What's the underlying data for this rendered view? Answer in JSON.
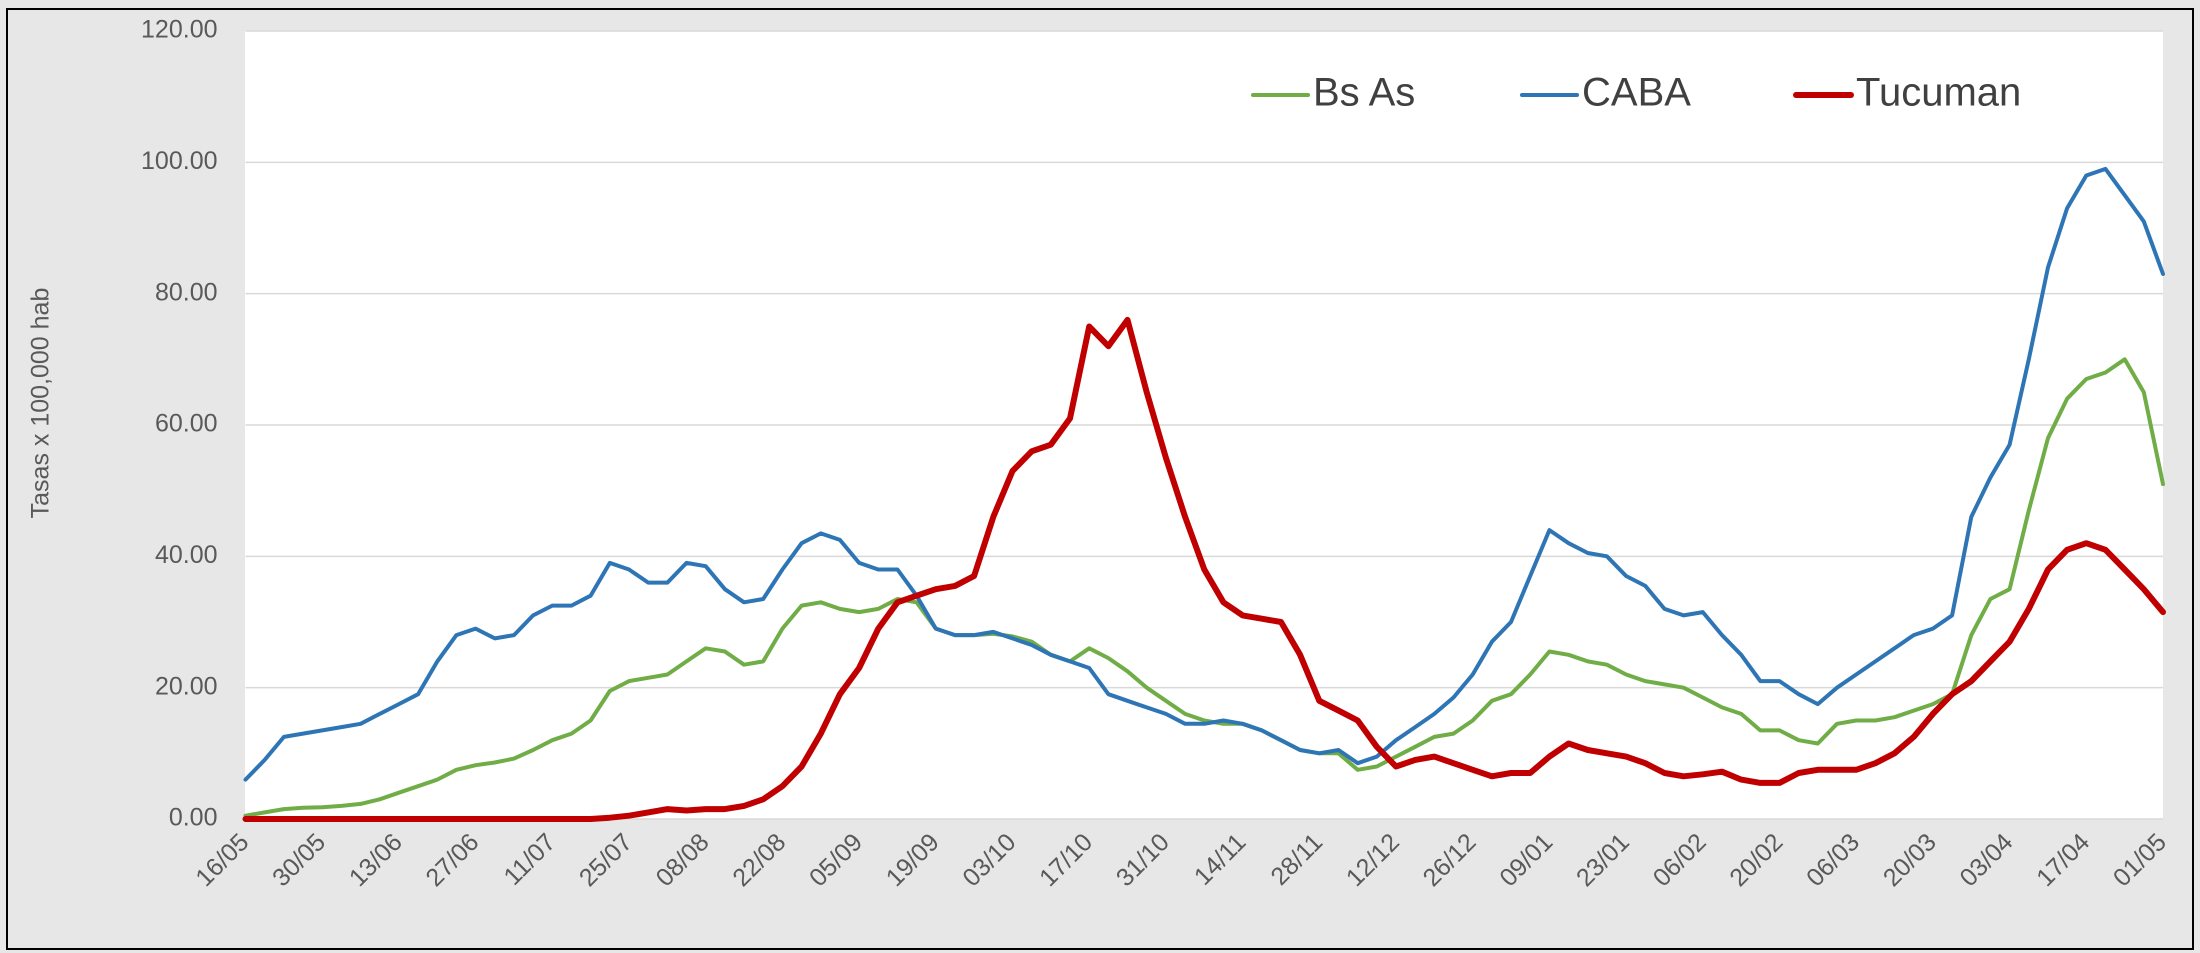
{
  "chart_data": {
    "type": "line",
    "y_label": "Tasas x 100,000 hab",
    "categories": [
      "16/05",
      null,
      null,
      null,
      "30/05",
      null,
      null,
      null,
      "13/06",
      null,
      null,
      null,
      "27/06",
      null,
      null,
      null,
      "11/07",
      null,
      null,
      null,
      "25/07",
      null,
      null,
      null,
      "08/08",
      null,
      null,
      null,
      "22/08",
      null,
      null,
      null,
      "05/09",
      null,
      null,
      null,
      "19/09",
      null,
      null,
      null,
      "03/10",
      null,
      null,
      null,
      "17/10",
      null,
      null,
      null,
      "31/10",
      null,
      null,
      null,
      "14/11",
      null,
      null,
      null,
      "28/11",
      null,
      null,
      null,
      "12/12",
      null,
      null,
      null,
      "26/12",
      null,
      null,
      null,
      "09/01",
      null,
      null,
      null,
      "23/01",
      null,
      null,
      null,
      "06/02",
      null,
      null,
      null,
      "20/02",
      null,
      null,
      null,
      "06/03",
      null,
      null,
      null,
      "20/03",
      null,
      null,
      null,
      "03/04",
      null,
      null,
      null,
      "17/04",
      null,
      null,
      null,
      "01/05"
    ],
    "series": [
      {
        "name": "Bs As",
        "color": "#70ad47",
        "width": 4,
        "values": [
          0.5,
          1,
          1.5,
          1.7,
          1.8,
          2,
          2.3,
          3,
          4,
          5,
          6,
          7.5,
          8.2,
          8.6,
          9.2,
          10.5,
          12,
          13,
          15,
          19.5,
          21,
          21.5,
          22,
          24,
          26,
          25.5,
          23.5,
          24,
          29,
          32.5,
          33,
          32,
          31.5,
          32,
          33.5,
          33,
          29,
          28,
          28,
          28.2,
          27.8,
          27,
          25,
          24,
          26,
          24.5,
          22.5,
          20,
          18,
          16,
          15,
          14.5,
          14.5,
          13.5,
          12,
          10.5,
          10,
          10,
          7.5,
          8,
          9.5,
          11,
          12.5,
          13,
          15,
          18,
          19,
          22,
          25.5,
          25,
          24,
          23.5,
          22,
          21,
          20.5,
          20,
          18.5,
          17,
          16,
          13.5,
          13.5,
          12,
          11.5,
          14.5,
          15,
          15,
          15.5,
          16.5,
          17.5,
          19,
          28,
          33.5,
          35,
          47,
          58,
          64,
          67,
          68,
          70,
          65,
          51
        ]
      },
      {
        "name": "CABA",
        "color": "#2e75b6",
        "width": 4,
        "values": [
          6,
          9,
          12.5,
          13,
          13.5,
          14,
          14.5,
          16,
          17.5,
          19,
          24,
          28,
          29,
          27.5,
          28,
          31,
          32.5,
          32.5,
          34,
          39,
          38,
          36,
          36,
          39,
          38.5,
          35,
          33,
          33.5,
          38,
          42,
          43.5,
          42.5,
          39,
          38,
          38,
          34,
          29,
          28,
          28,
          28.5,
          27.5,
          26.5,
          25,
          24,
          23,
          19,
          18,
          17,
          16,
          14.5,
          14.5,
          15,
          14.5,
          13.5,
          12,
          10.5,
          10,
          10.5,
          8.5,
          9.5,
          12,
          14,
          16,
          18.5,
          22,
          27,
          30,
          37,
          44,
          42,
          40.5,
          40,
          37,
          35.5,
          32,
          31,
          31.5,
          28,
          25,
          21,
          21,
          19,
          17.5,
          20,
          22,
          24,
          26,
          28,
          29,
          31,
          46,
          52,
          57,
          70,
          84,
          93,
          98,
          99,
          95,
          91,
          83
        ]
      },
      {
        "name": "Tucuman",
        "color": "#c00000",
        "width": 6,
        "values": [
          0,
          0,
          0,
          0,
          0,
          0,
          0,
          0,
          0,
          0,
          0,
          0,
          0,
          0,
          0,
          0,
          0,
          0,
          0,
          0.2,
          0.5,
          1,
          1.5,
          1.3,
          1.5,
          1.5,
          2,
          3,
          5,
          8,
          13,
          19,
          23,
          29,
          33,
          34,
          35,
          35.5,
          37,
          46,
          53,
          56,
          57,
          61,
          75,
          72,
          76,
          65,
          55,
          46,
          38,
          33,
          31,
          30.5,
          30,
          25,
          18,
          16.5,
          15,
          11,
          8,
          9,
          9.5,
          8.5,
          7.5,
          6.5,
          7,
          7,
          9.5,
          11.5,
          10.5,
          10,
          9.5,
          8.5,
          7,
          6.5,
          6.8,
          7.2,
          6,
          5.5,
          5.5,
          7,
          7.5,
          7.5,
          7.5,
          8.5,
          10,
          12.5,
          16,
          19,
          21,
          24,
          27,
          32,
          38,
          41,
          42,
          41,
          38,
          35,
          31.5
        ]
      }
    ],
    "ylim": [
      0,
      120
    ],
    "yticks": [
      {
        "value": 0,
        "label": "0.00"
      },
      {
        "value": 20,
        "label": "20.00"
      },
      {
        "value": 40,
        "label": "40.00"
      },
      {
        "value": 60,
        "label": "60.00"
      },
      {
        "value": 80,
        "label": "80.00"
      },
      {
        "value": 100,
        "label": "100.00"
      },
      {
        "value": 120,
        "label": "120.00"
      }
    ],
    "grid": true,
    "legend": "top"
  }
}
